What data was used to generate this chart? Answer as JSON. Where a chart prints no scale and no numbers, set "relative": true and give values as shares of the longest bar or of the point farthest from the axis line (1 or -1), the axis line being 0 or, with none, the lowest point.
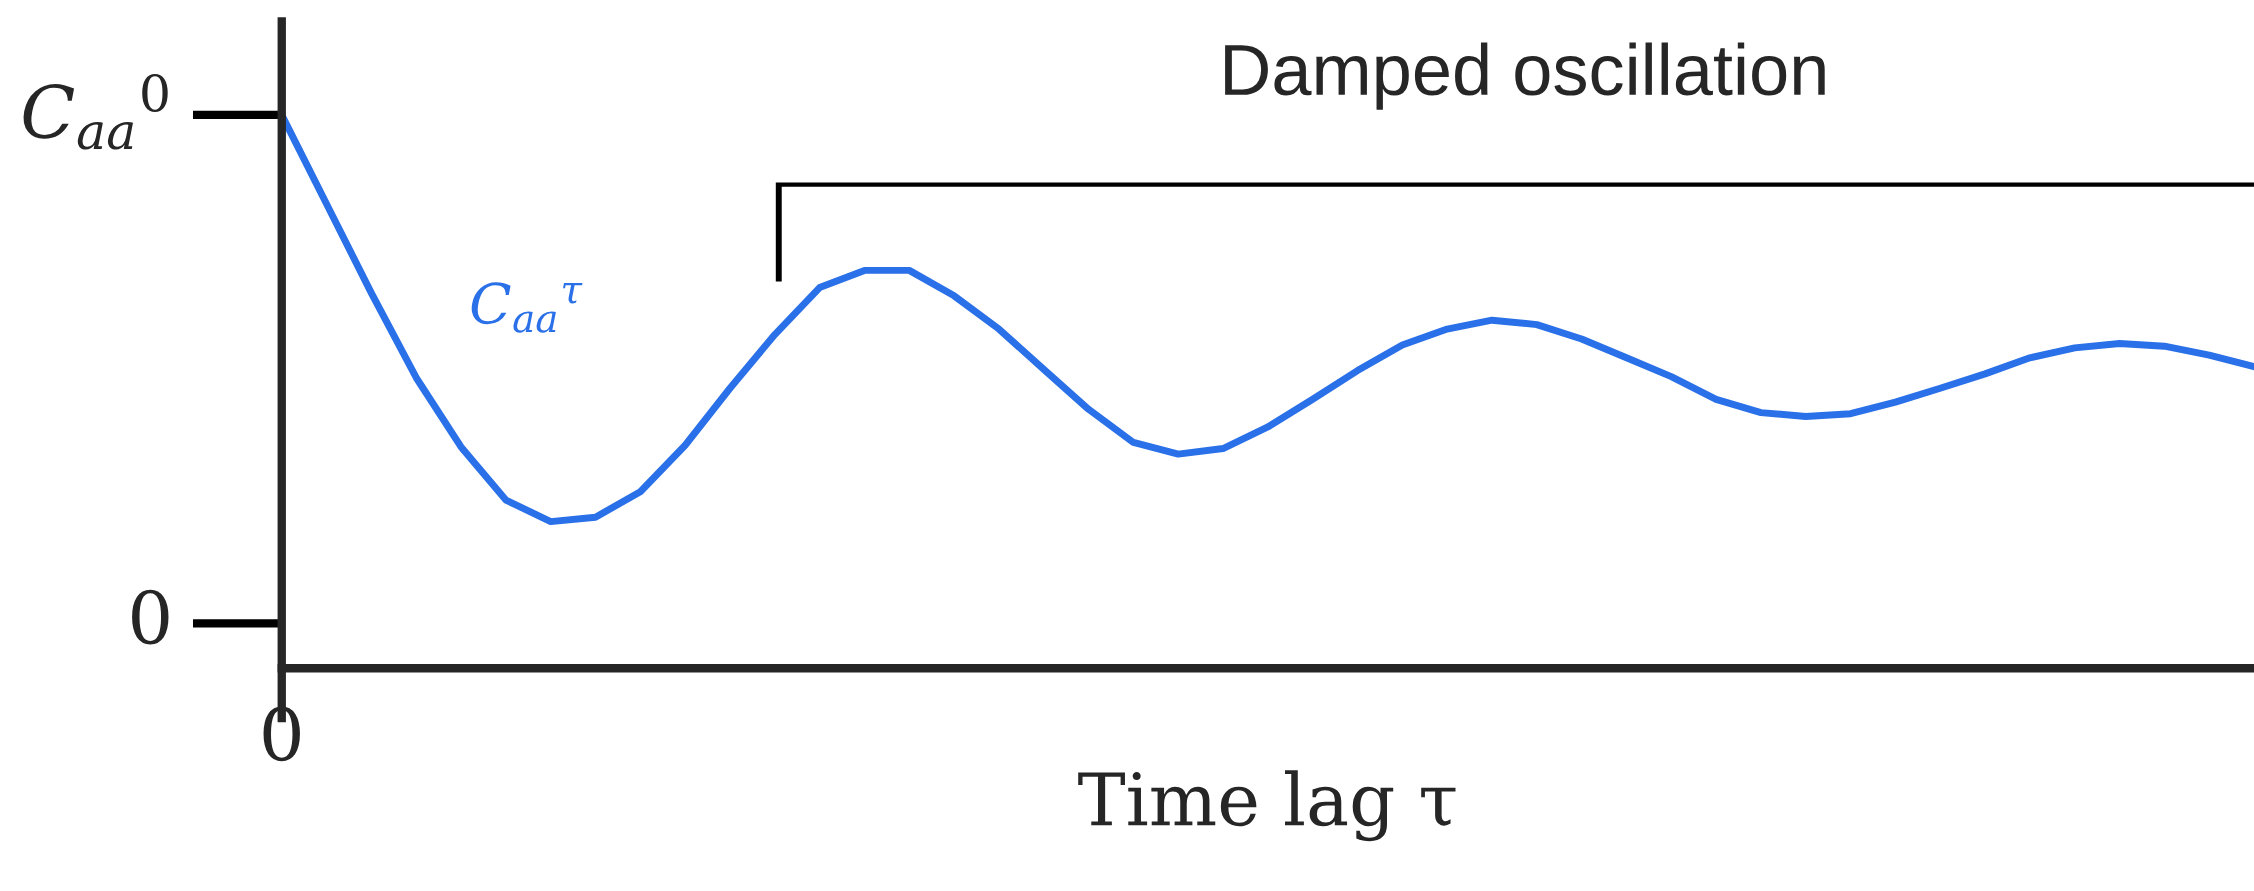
{
  "chart_data": {
    "type": "line",
    "relative": true,
    "xlabel": "Time lag τ",
    "annotations": [
      "Damped oscillation",
      "C$_{aa}$$^{0}$",
      "0",
      "0"
    ],
    "line_style": "solid",
    "categories": [
      null,
      null,
      null,
      null,
      null,
      null,
      null,
      null,
      null,
      null,
      null,
      null,
      null,
      null,
      null,
      null,
      null,
      null,
      null,
      null,
      null,
      null,
      null,
      null,
      null,
      null,
      null,
      null,
      null,
      null,
      null,
      null,
      null,
      null,
      null,
      null,
      null,
      null,
      null,
      null,
      null,
      null,
      null,
      null,
      null
    ],
    "series": [
      {
        "name": "C$_{aa}$$^{τ}$",
        "color": "#2a70e8",
        "values": [
          1.0,
          0.839,
          0.678,
          0.525,
          0.4,
          0.304,
          0.265,
          0.273,
          0.319,
          0.403,
          0.506,
          0.603,
          0.688,
          0.719,
          0.719,
          0.673,
          0.613,
          0.54,
          0.468,
          0.408,
          0.387,
          0.397,
          0.436,
          0.486,
          0.538,
          0.584,
          0.613,
          0.629,
          0.621,
          0.595,
          0.561,
          0.527,
          0.486,
          0.462,
          0.455,
          0.46,
          0.481,
          0.506,
          0.532,
          0.561,
          0.579,
          0.587,
          0.582,
          0.566,
          0.545
        ]
      }
    ]
  }
}
